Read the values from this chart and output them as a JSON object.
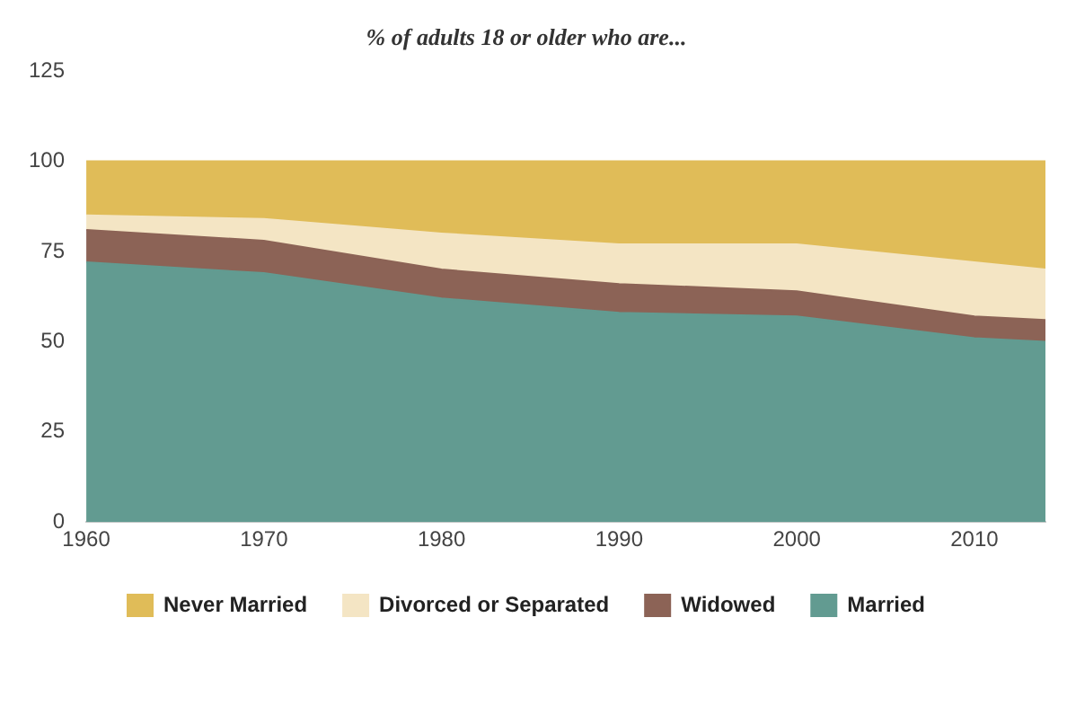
{
  "chart_data": {
    "type": "area",
    "title": "% of adults 18 or older who are...",
    "x": [
      1960,
      1970,
      1980,
      1990,
      2000,
      2010,
      2014
    ],
    "series": [
      {
        "name": "Married",
        "color": "#629b91",
        "values": [
          72,
          69,
          62,
          58,
          57,
          51,
          50
        ]
      },
      {
        "name": "Widowed",
        "color": "#8c6356",
        "values": [
          9,
          9,
          8,
          8,
          7,
          6,
          6
        ]
      },
      {
        "name": "Divorced or Separated",
        "color": "#f4e5c4",
        "values": [
          4,
          6,
          10,
          11,
          13,
          15,
          14
        ]
      },
      {
        "name": "Never Married",
        "color": "#e0bc58",
        "values": [
          15,
          16,
          20,
          23,
          23,
          28,
          30
        ]
      }
    ],
    "stacked": true,
    "xlim": [
      1960,
      2014
    ],
    "xticks": [
      1960,
      1970,
      1980,
      1990,
      2000,
      2010
    ],
    "ylim": [
      0,
      125
    ],
    "yticks": [
      0,
      25,
      50,
      75,
      100,
      125
    ],
    "grid": false,
    "legend": "bottom"
  }
}
